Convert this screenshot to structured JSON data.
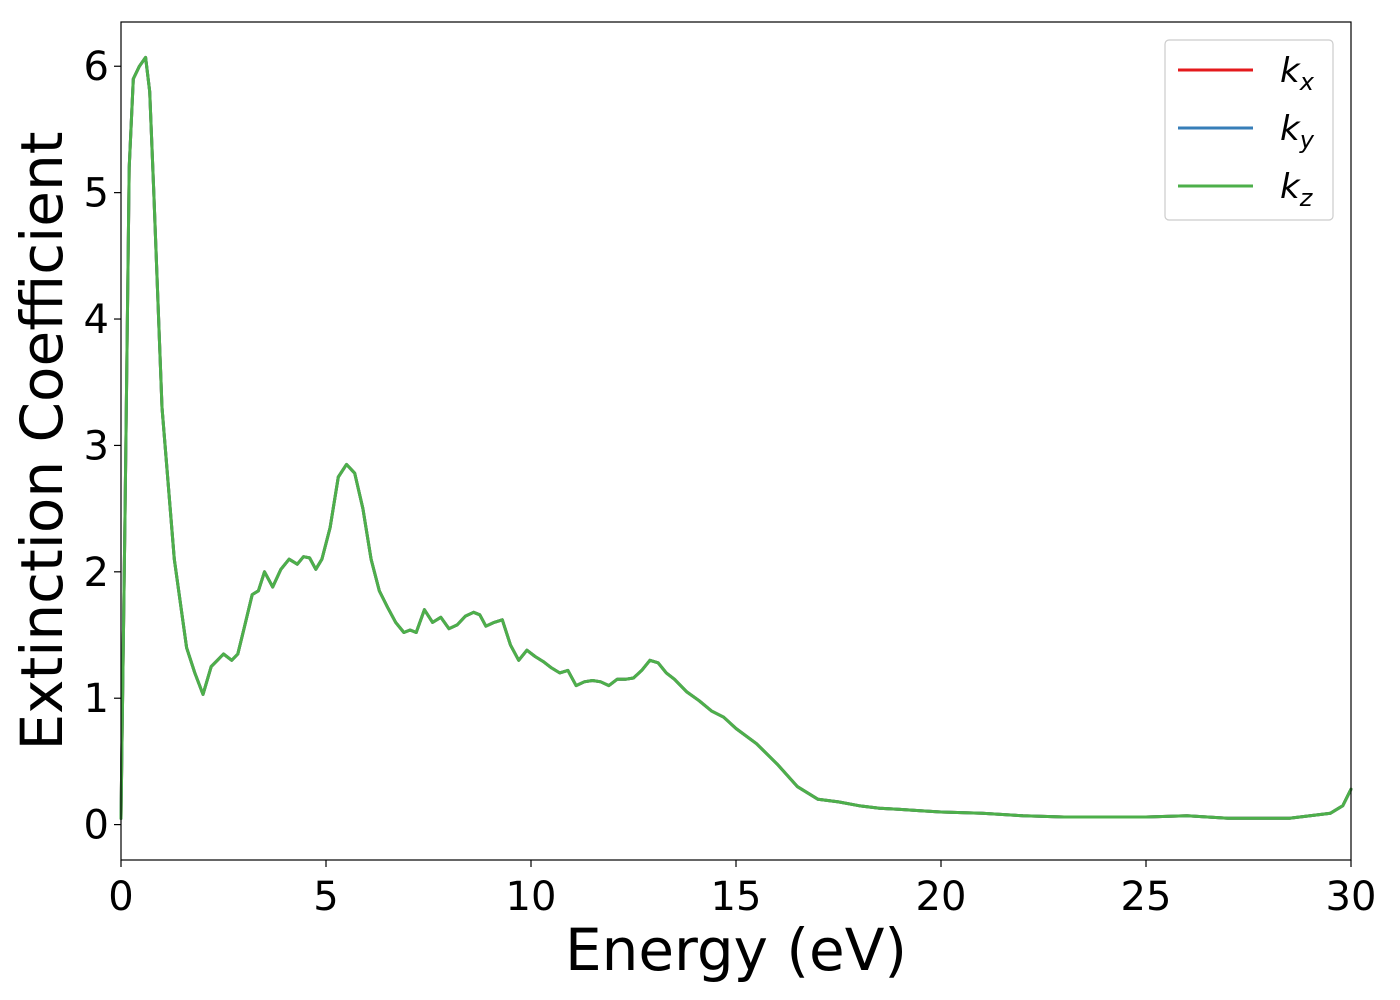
{
  "chart_data": {
    "type": "line",
    "xlabel": "Energy (eV)",
    "ylabel": "Extinction Coefficient",
    "xlim": [
      0,
      30
    ],
    "ylim": [
      -0.28,
      6.35
    ],
    "xticks": [
      "0",
      "5",
      "10",
      "15",
      "20",
      "25",
      "30"
    ],
    "yticks": [
      "0",
      "1",
      "2",
      "3",
      "4",
      "5",
      "6"
    ],
    "grid": false,
    "legend_position": "top-right",
    "x": [
      0,
      0.1,
      0.2,
      0.3,
      0.45,
      0.6,
      0.7,
      0.8,
      1.0,
      1.3,
      1.6,
      1.8,
      2.0,
      2.2,
      2.35,
      2.5,
      2.7,
      2.85,
      3.0,
      3.2,
      3.35,
      3.5,
      3.7,
      3.9,
      4.1,
      4.3,
      4.45,
      4.6,
      4.75,
      4.9,
      5.1,
      5.3,
      5.5,
      5.7,
      5.9,
      6.1,
      6.3,
      6.5,
      6.7,
      6.9,
      7.05,
      7.2,
      7.4,
      7.6,
      7.8,
      8.0,
      8.2,
      8.4,
      8.6,
      8.75,
      8.9,
      9.1,
      9.3,
      9.5,
      9.7,
      9.9,
      10.1,
      10.3,
      10.5,
      10.7,
      10.9,
      11.1,
      11.3,
      11.5,
      11.7,
      11.9,
      12.1,
      12.3,
      12.5,
      12.7,
      12.9,
      13.1,
      13.3,
      13.5,
      13.8,
      14.1,
      14.4,
      14.7,
      15.0,
      15.5,
      16.0,
      16.5,
      17.0,
      17.5,
      18.0,
      18.5,
      19.0,
      19.5,
      20.0,
      21.0,
      22.0,
      23.0,
      24.0,
      25.0,
      26.0,
      27.0,
      28.0,
      28.5,
      29.0,
      29.5,
      29.8,
      30.0
    ],
    "series": [
      {
        "name": "kx",
        "values": [
          0.05,
          2.5,
          5.2,
          5.9,
          6.0,
          6.07,
          5.8,
          5.0,
          3.3,
          2.1,
          1.4,
          1.2,
          1.03,
          1.25,
          1.3,
          1.35,
          1.3,
          1.35,
          1.55,
          1.82,
          1.85,
          2.0,
          1.88,
          2.02,
          2.1,
          2.06,
          2.12,
          2.11,
          2.02,
          2.1,
          2.35,
          2.75,
          2.85,
          2.78,
          2.5,
          2.1,
          1.85,
          1.72,
          1.6,
          1.52,
          1.54,
          1.52,
          1.7,
          1.6,
          1.64,
          1.55,
          1.58,
          1.65,
          1.68,
          1.66,
          1.57,
          1.6,
          1.62,
          1.42,
          1.3,
          1.38,
          1.33,
          1.29,
          1.24,
          1.2,
          1.22,
          1.1,
          1.13,
          1.14,
          1.13,
          1.1,
          1.15,
          1.15,
          1.16,
          1.22,
          1.3,
          1.28,
          1.2,
          1.15,
          1.05,
          0.98,
          0.9,
          0.85,
          0.76,
          0.64,
          0.48,
          0.3,
          0.2,
          0.18,
          0.15,
          0.13,
          0.12,
          0.11,
          0.1,
          0.09,
          0.07,
          0.06,
          0.06,
          0.06,
          0.07,
          0.05,
          0.05,
          0.05,
          0.07,
          0.09,
          0.15,
          0.28
        ]
      },
      {
        "name": "ky",
        "values": [
          0.05,
          2.5,
          5.2,
          5.9,
          6.0,
          6.07,
          5.8,
          5.0,
          3.3,
          2.1,
          1.4,
          1.2,
          1.03,
          1.25,
          1.3,
          1.35,
          1.3,
          1.35,
          1.55,
          1.82,
          1.85,
          2.0,
          1.88,
          2.02,
          2.1,
          2.06,
          2.12,
          2.11,
          2.02,
          2.1,
          2.35,
          2.75,
          2.85,
          2.78,
          2.5,
          2.1,
          1.85,
          1.72,
          1.6,
          1.52,
          1.54,
          1.52,
          1.7,
          1.6,
          1.64,
          1.55,
          1.58,
          1.65,
          1.68,
          1.66,
          1.57,
          1.6,
          1.62,
          1.42,
          1.3,
          1.38,
          1.33,
          1.29,
          1.24,
          1.2,
          1.22,
          1.1,
          1.13,
          1.14,
          1.13,
          1.1,
          1.15,
          1.15,
          1.16,
          1.22,
          1.3,
          1.28,
          1.2,
          1.15,
          1.05,
          0.98,
          0.9,
          0.85,
          0.76,
          0.64,
          0.48,
          0.3,
          0.2,
          0.18,
          0.15,
          0.13,
          0.12,
          0.11,
          0.1,
          0.09,
          0.07,
          0.06,
          0.06,
          0.06,
          0.07,
          0.05,
          0.05,
          0.05,
          0.07,
          0.09,
          0.15,
          0.28
        ]
      },
      {
        "name": "kz",
        "values": [
          0.05,
          2.5,
          5.2,
          5.9,
          6.0,
          6.07,
          5.8,
          5.0,
          3.3,
          2.1,
          1.4,
          1.2,
          1.03,
          1.25,
          1.3,
          1.35,
          1.3,
          1.35,
          1.55,
          1.82,
          1.85,
          2.0,
          1.88,
          2.02,
          2.1,
          2.06,
          2.12,
          2.11,
          2.02,
          2.1,
          2.35,
          2.75,
          2.85,
          2.78,
          2.5,
          2.1,
          1.85,
          1.72,
          1.6,
          1.52,
          1.54,
          1.52,
          1.7,
          1.6,
          1.64,
          1.55,
          1.58,
          1.65,
          1.68,
          1.66,
          1.57,
          1.6,
          1.62,
          1.42,
          1.3,
          1.38,
          1.33,
          1.29,
          1.24,
          1.2,
          1.22,
          1.1,
          1.13,
          1.14,
          1.13,
          1.1,
          1.15,
          1.15,
          1.16,
          1.22,
          1.3,
          1.28,
          1.2,
          1.15,
          1.05,
          0.98,
          0.9,
          0.85,
          0.76,
          0.64,
          0.48,
          0.3,
          0.2,
          0.18,
          0.15,
          0.13,
          0.12,
          0.11,
          0.1,
          0.09,
          0.07,
          0.06,
          0.06,
          0.06,
          0.07,
          0.05,
          0.05,
          0.05,
          0.07,
          0.09,
          0.15,
          0.28
        ]
      }
    ],
    "legend": [
      {
        "base": "k",
        "sub": "x",
        "color": "#e41a1c"
      },
      {
        "base": "k",
        "sub": "y",
        "color": "#377eb8"
      },
      {
        "base": "k",
        "sub": "z",
        "color": "#4daf4a"
      }
    ]
  }
}
